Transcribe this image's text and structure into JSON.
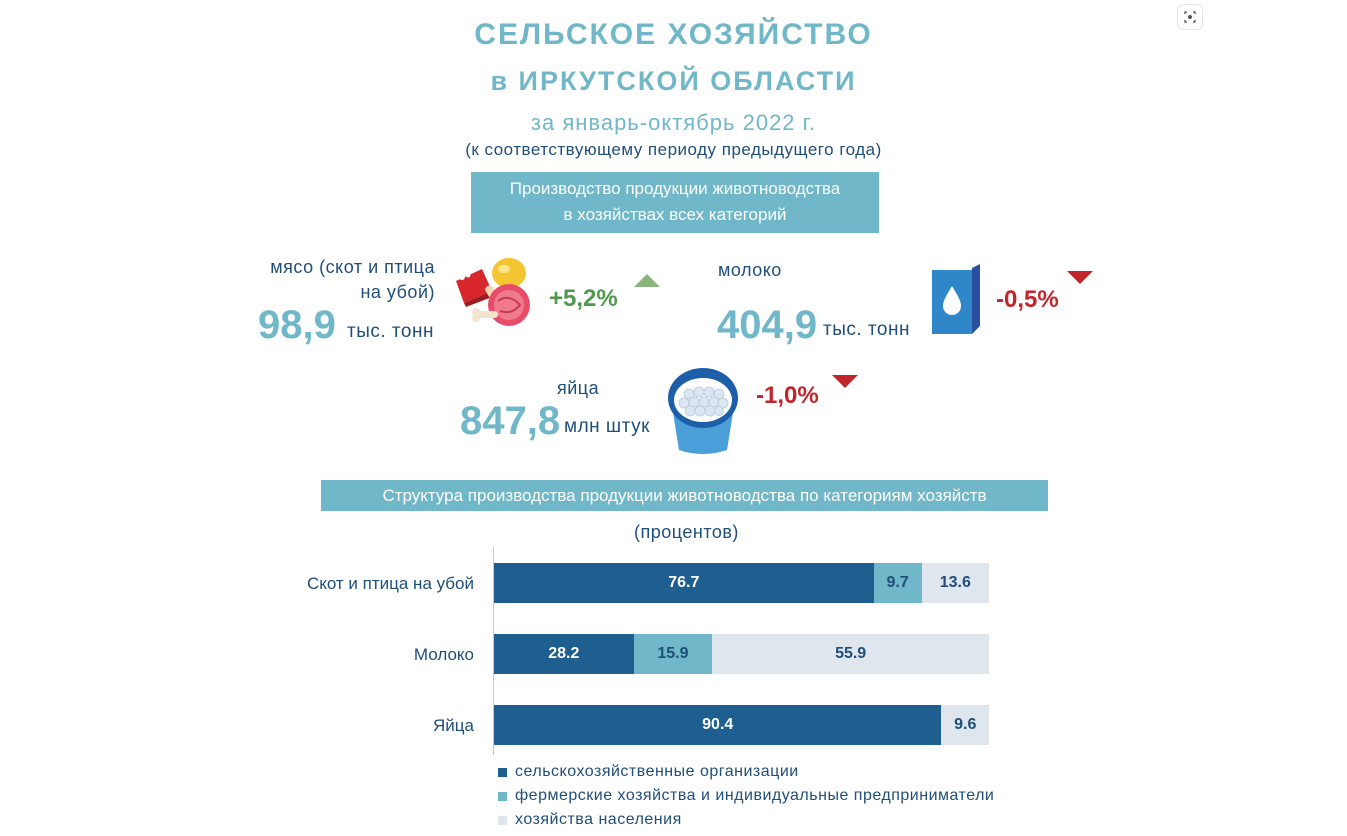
{
  "header": {
    "title_line1": "СЕЛЬСКОЕ ХОЗЯЙСТВО",
    "title_line2": "в ИРКУТСКОЙ ОБЛАСТИ",
    "period": "за январь-октябрь 2022 г.",
    "comparison": "(к соответствующему периоду предыдущего года)"
  },
  "section1": {
    "box_line1": "Производство продукции животноводства",
    "box_line2": "в хозяйствах всех категорий"
  },
  "meat": {
    "label_line1": "мясо (скот и птица",
    "label_line2": "на убой)",
    "value": "98,9",
    "unit": "тыс. тонн",
    "change": "+5,2%",
    "icon": "meat-icon"
  },
  "milk": {
    "label": "молоко",
    "value": "404,9",
    "unit": "тыс. тонн",
    "change": "-0,5%",
    "icon": "milk-carton-icon"
  },
  "eggs": {
    "label": "яйца",
    "value": "847,8",
    "unit": "млн штук",
    "change": "-1,0%",
    "icon": "egg-bucket-icon"
  },
  "section2": {
    "box_title": "Структура производства продукции животноводства по категориям хозяйств",
    "units": "(процентов)"
  },
  "colors": {
    "accent": "#6fb7c9",
    "dark_blue": "#1f5f8f",
    "light_gray": "#dfe6ee",
    "positive": "#4e9a4b",
    "negative": "#c0262c"
  },
  "chart_data": {
    "type": "bar",
    "orientation": "horizontal",
    "stacked": true,
    "title": "Структура производства продукции животноводства по категориям хозяйств",
    "subtitle": "(процентов)",
    "categories": [
      "Скот и птица на убой",
      "Молоко",
      "Яйца"
    ],
    "series": [
      {
        "name": "сельскохозяйственные организации",
        "color": "#1f5f8f",
        "values": [
          76.7,
          28.2,
          90.4
        ],
        "labels": [
          "76.7",
          "28.2",
          "90.4"
        ]
      },
      {
        "name": "фермерские хозяйства и индивидуальные предприниматели",
        "color": "#6fb7c9",
        "values": [
          9.7,
          15.9,
          0
        ],
        "labels": [
          "9.7",
          "15.9",
          ""
        ]
      },
      {
        "name": "хозяйства населения",
        "color": "#dfe6ee",
        "values": [
          13.6,
          55.9,
          9.6
        ],
        "labels": [
          "13.6",
          "55.9",
          "9.6"
        ]
      }
    ],
    "xlim": [
      0,
      100
    ],
    "legend": "bottom"
  }
}
